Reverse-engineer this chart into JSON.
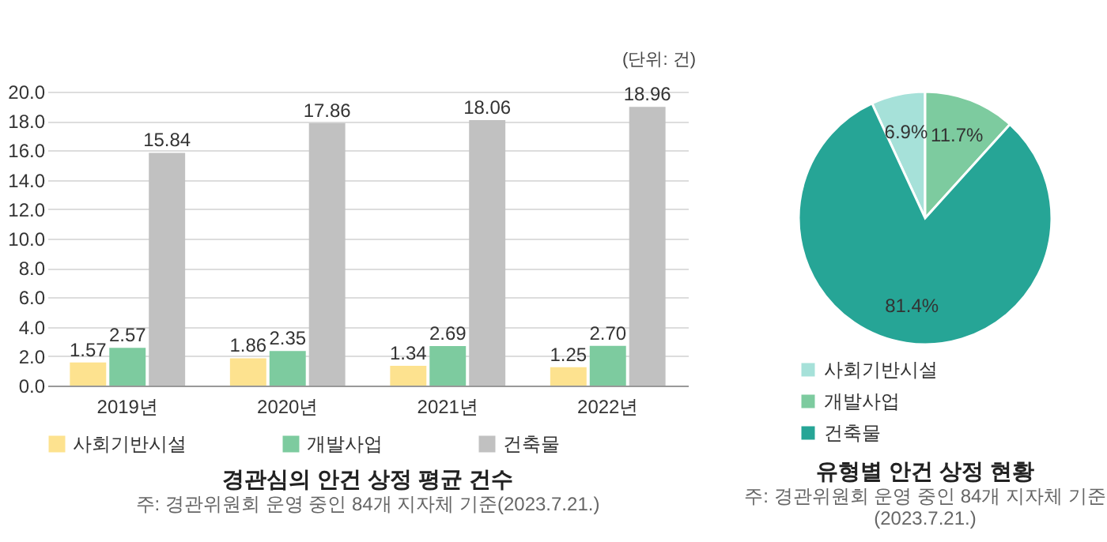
{
  "chart_data": [
    {
      "type": "bar",
      "title": "경관심의 안건 상정 평균 건수",
      "subtitle": "주: 경관위원회 운영 중인 84개 지자체 기준(2023.7.21.)",
      "annotations": [
        "(단위: 건)"
      ],
      "categories": [
        "2019년",
        "2020년",
        "2021년",
        "2022년"
      ],
      "series": [
        {
          "name": "사회기반시설",
          "color": "#fde28f",
          "values": [
            1.57,
            1.86,
            1.34,
            1.25
          ],
          "value_labels": [
            "1.57",
            "1.86",
            "1.34",
            "1.25"
          ]
        },
        {
          "name": "개발사업",
          "color": "#7dcb9f",
          "values": [
            2.57,
            2.35,
            2.69,
            2.7
          ],
          "value_labels": [
            "2.57",
            "2.35",
            "2.69",
            "2.70"
          ]
        },
        {
          "name": "건축물",
          "color": "#c1c1c1",
          "values": [
            15.84,
            17.86,
            18.06,
            18.96
          ],
          "value_labels": [
            "15.84",
            "17.86",
            "18.06",
            "18.96"
          ]
        }
      ],
      "ylim": [
        0,
        20
      ],
      "yticks": [
        {
          "value": 0,
          "label": "0.0"
        },
        {
          "value": 2,
          "label": "2.0"
        },
        {
          "value": 4,
          "label": "4.0"
        },
        {
          "value": 6,
          "label": "6.0"
        },
        {
          "value": 8,
          "label": "8.0"
        },
        {
          "value": 10,
          "label": "10.0"
        },
        {
          "value": 12,
          "label": "12.0"
        },
        {
          "value": 14,
          "label": "14.0"
        },
        {
          "value": 16,
          "label": "16.0"
        },
        {
          "value": 18,
          "label": "18.0"
        },
        {
          "value": 20,
          "label": "20.0"
        }
      ],
      "grid": "y",
      "legend": "bottom"
    },
    {
      "type": "pie",
      "title": "유형별 안건 상정 현황",
      "subtitle": [
        "주: 경관위원회 운영 중인 84개 지자체 기준",
        "(2023.7.21.)"
      ],
      "categories": [
        "사회기반시설",
        "개발사업",
        "건축물"
      ],
      "values": [
        6.9,
        11.7,
        81.4
      ],
      "value_labels": [
        "6.9%",
        "11.7%",
        "81.4%"
      ],
      "colors": [
        "#a6e1d9",
        "#7dcb9f",
        "#26a596"
      ],
      "legend": "bottom"
    }
  ]
}
